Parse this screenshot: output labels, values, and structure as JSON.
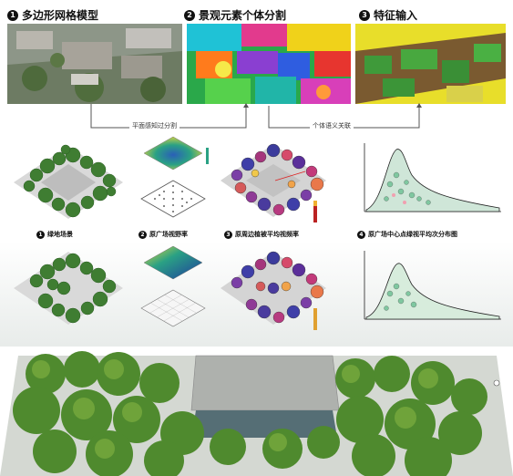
{
  "top": {
    "steps": [
      {
        "num": "1",
        "label": "多边形网格模型"
      },
      {
        "num": "2",
        "label": "景观元素个体分割"
      },
      {
        "num": "3",
        "label": "特征输入"
      }
    ],
    "arrow1_label": "平面感知过分割",
    "arrow2_label": "个体语义关联"
  },
  "row1": {
    "captions": [
      {
        "num": "1",
        "label": "绿地场景"
      },
      {
        "num": "2",
        "label": "原广场视野率"
      },
      {
        "num": "3",
        "label": "原周边植被平均视频率"
      },
      {
        "num": "4",
        "label": "原广场中心点绿视平均次分布图"
      }
    ]
  },
  "colors": {
    "tree_green": "#3f7d32",
    "tree_dark": "#2c5e24",
    "plaza_gray": "#bdbdbd",
    "yellow": "#e8de2a",
    "brown": "#8a5a2b"
  }
}
